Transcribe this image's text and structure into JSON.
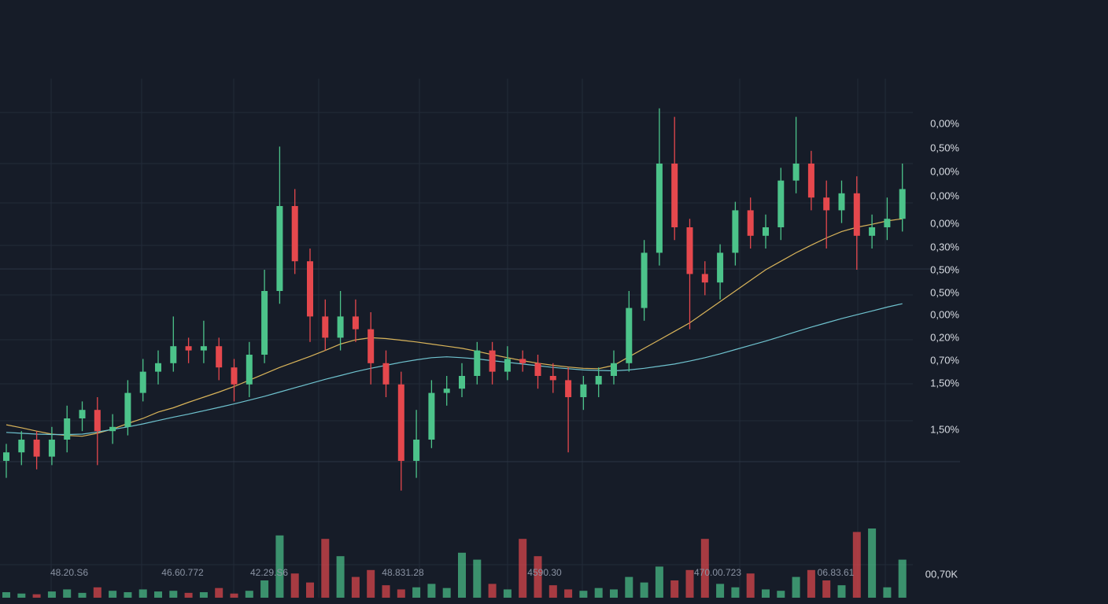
{
  "chart_data": {
    "type": "candlestick",
    "up_color": "#4cc38a",
    "down_color": "#e5484d",
    "ylim": [
      0,
      100
    ],
    "volume_lim": [
      0,
      100
    ],
    "open": [
      10,
      12,
      15,
      11,
      15,
      20,
      22,
      17,
      18,
      26,
      31,
      33,
      37,
      36,
      37,
      32,
      28,
      35,
      50,
      70,
      57,
      44,
      39,
      44,
      41,
      33,
      28,
      10,
      15,
      26,
      27,
      30,
      36,
      31,
      34,
      33,
      30,
      29,
      25,
      28,
      30,
      33,
      46,
      59,
      80,
      65,
      54,
      52,
      59,
      69,
      63,
      65,
      76,
      80,
      72,
      69,
      73,
      63,
      65,
      67
    ],
    "high": [
      14,
      17,
      17,
      18,
      23,
      24,
      25,
      21,
      29,
      34,
      36,
      44,
      39,
      43,
      39,
      34,
      38,
      55,
      84,
      74,
      60,
      48,
      50,
      48,
      45,
      36,
      31,
      22,
      29,
      30,
      33,
      38,
      38,
      37,
      36,
      35,
      33,
      32,
      30,
      32,
      36,
      50,
      62,
      93,
      91,
      67,
      57,
      61,
      71,
      72,
      68,
      79,
      91,
      83,
      76,
      76,
      77,
      68,
      72,
      80
    ],
    "low": [
      6,
      9,
      8,
      9,
      12,
      17,
      9,
      14,
      16,
      24,
      28,
      31,
      33,
      33,
      29,
      24,
      25,
      33,
      47,
      54,
      38,
      36,
      36,
      38,
      28,
      25,
      3,
      6,
      13,
      23,
      25,
      28,
      28,
      29,
      31,
      27,
      26,
      12,
      22,
      25,
      28,
      31,
      43,
      56,
      62,
      41,
      49,
      48,
      56,
      60,
      60,
      62,
      73,
      69,
      60,
      66,
      55,
      60,
      62,
      64
    ],
    "close": [
      12,
      15,
      11,
      15,
      20,
      22,
      17,
      18,
      26,
      31,
      33,
      37,
      36,
      37,
      32,
      28,
      35,
      50,
      70,
      57,
      44,
      39,
      44,
      41,
      33,
      28,
      10,
      15,
      26,
      27,
      30,
      36,
      31,
      34,
      33,
      30,
      29,
      25,
      28,
      30,
      33,
      46,
      59,
      80,
      65,
      54,
      52,
      59,
      69,
      63,
      65,
      76,
      80,
      72,
      69,
      73,
      63,
      65,
      67,
      74
    ],
    "volume": [
      8,
      6,
      5,
      9,
      12,
      7,
      15,
      10,
      8,
      12,
      9,
      10,
      7,
      8,
      14,
      6,
      10,
      25,
      90,
      35,
      22,
      85,
      60,
      30,
      40,
      18,
      12,
      15,
      20,
      14,
      65,
      55,
      20,
      12,
      85,
      60,
      18,
      12,
      10,
      14,
      12,
      30,
      22,
      45,
      25,
      40,
      85,
      20,
      15,
      35,
      12,
      10,
      30,
      40,
      25,
      18,
      95,
      100,
      15,
      55
    ],
    "ma": [
      {
        "color": "#d9b45a",
        "values": [
          18.5,
          17.8,
          17,
          16.3,
          16,
          15.8,
          16.5,
          17.5,
          18.8,
          20,
          21.5,
          22.5,
          23.8,
          25,
          26.2,
          27.5,
          29,
          30.5,
          32,
          33.3,
          34.6,
          36,
          37.5,
          38.5,
          39,
          38.8,
          38.4,
          38,
          37.5,
          37,
          36.5,
          35.8,
          35,
          34.3,
          33.6,
          33,
          32.5,
          32.1,
          31.8,
          31.7,
          32.5,
          34.5,
          36.5,
          38.5,
          40.5,
          42.5,
          45,
          47.5,
          50,
          52.5,
          55,
          57,
          59,
          60.8,
          62.5,
          64,
          65,
          65.7,
          66.5,
          67
        ]
      },
      {
        "color": "#6fc3cf",
        "values": [
          16.7,
          16.5,
          16.3,
          16.2,
          16.2,
          16.3,
          16.8,
          17.4,
          18,
          18.7,
          19.5,
          20.3,
          21,
          21.8,
          22.6,
          23.4,
          24.3,
          25.2,
          26.2,
          27.2,
          28.2,
          29.2,
          30.1,
          31,
          31.8,
          32.5,
          33.2,
          33.8,
          34.3,
          34.5,
          34.3,
          34,
          33.6,
          33.2,
          32.8,
          32.4,
          32,
          31.7,
          31.4,
          31.3,
          31.2,
          31.4,
          31.8,
          32.3,
          32.8,
          33.5,
          34.3,
          35.2,
          36.2,
          37.2,
          38.2,
          39.3,
          40.4,
          41.5,
          42.5,
          43.5,
          44.4,
          45.3,
          46.2,
          47
        ]
      }
    ],
    "price_labels": [
      "0,00%",
      "0,50%",
      "0,00%",
      "0,00%",
      "0,00%",
      "0,30%",
      "0,50%",
      "0,50%",
      "0,00%",
      "0,20%",
      "0,70%",
      "1,50%",
      "1,50%"
    ],
    "time_labels": [
      "48.20.S6",
      "46.60.772",
      "42.29.S6",
      "48.831.28",
      "4590.30",
      "470.00.723",
      "06.83.61"
    ],
    "volume_label": "00,70K"
  }
}
